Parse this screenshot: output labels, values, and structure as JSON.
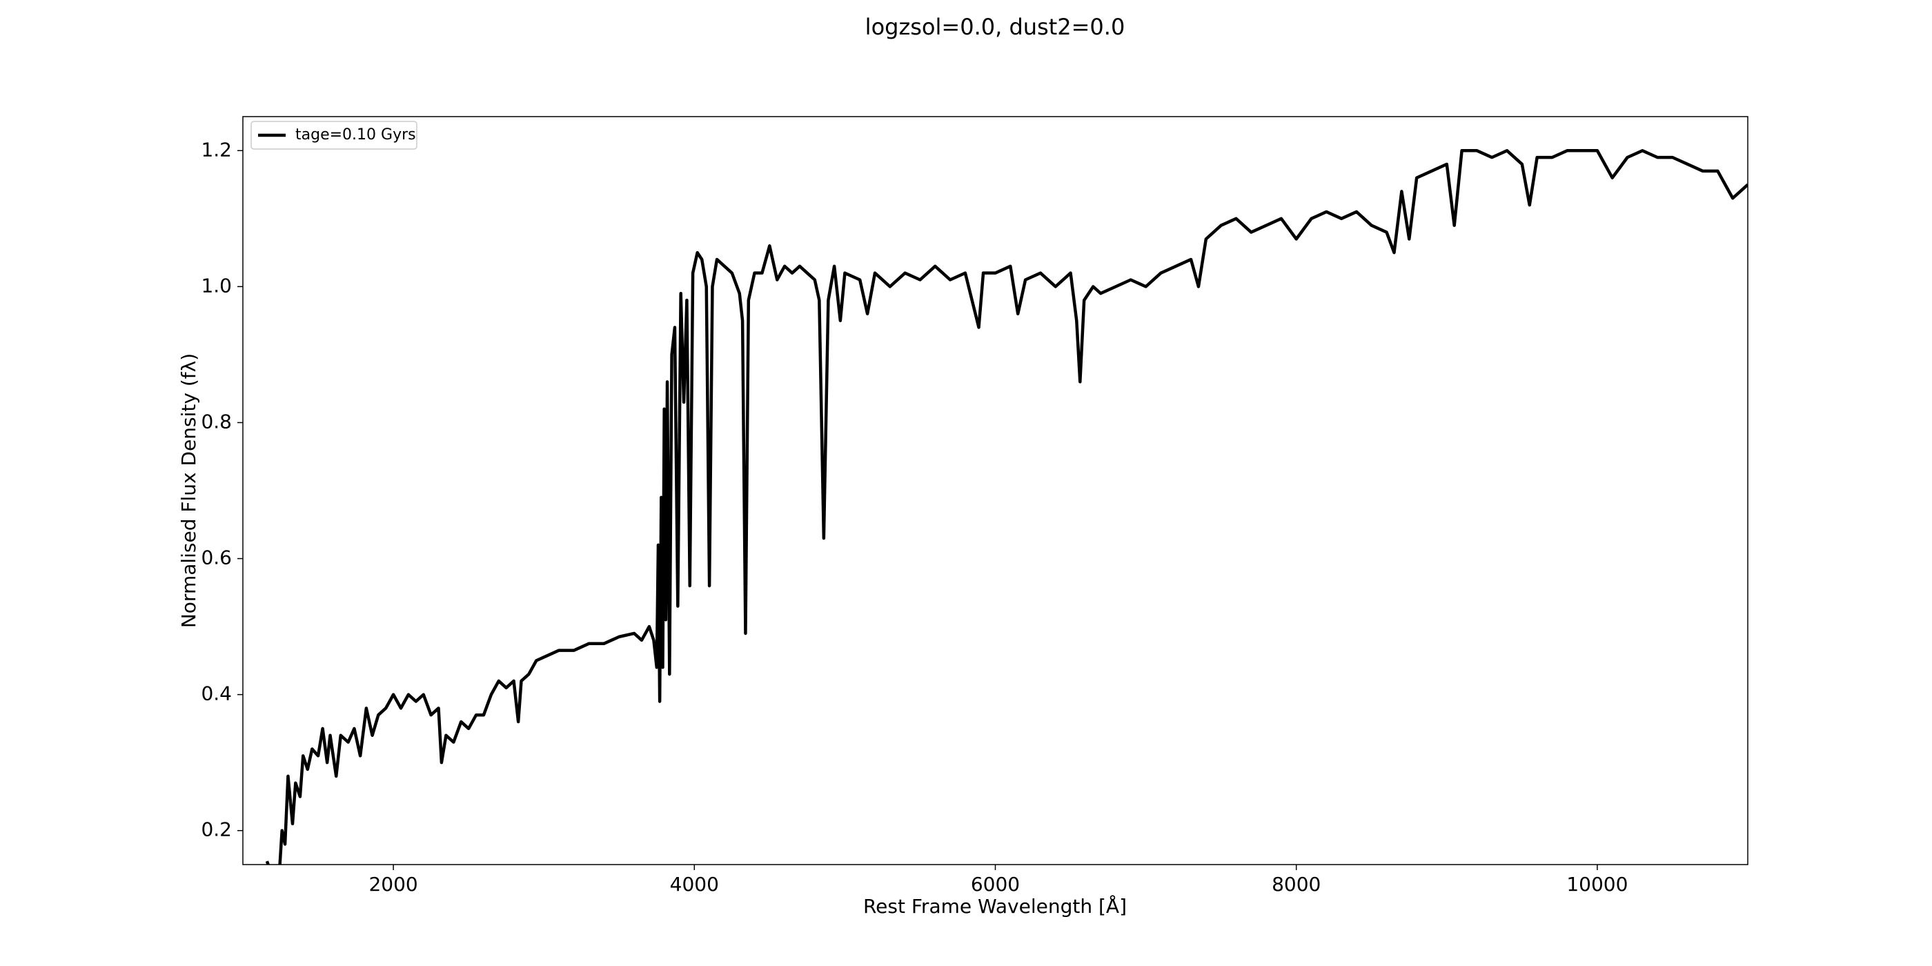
{
  "chart_data": {
    "type": "line",
    "title": "logzsol=0.0, dust2=0.0",
    "xlabel": "Rest Frame Wavelength [Å]",
    "ylabel": "Normalised Flux Density (fλ)",
    "xlim": [
      1000,
      11000
    ],
    "ylim": [
      0.15,
      1.25
    ],
    "xticks": [
      2000,
      4000,
      6000,
      8000,
      10000
    ],
    "yticks": [
      0.2,
      0.4,
      0.6,
      0.8,
      {
        "value": 1.0,
        "label": "1.0"
      },
      1.2
    ],
    "legend": "upper left",
    "x": [
      1160,
      1200,
      1240,
      1260,
      1280,
      1300,
      1330,
      1350,
      1380,
      1400,
      1430,
      1460,
      1500,
      1530,
      1560,
      1580,
      1620,
      1650,
      1700,
      1740,
      1780,
      1820,
      1860,
      1900,
      1950,
      2000,
      2050,
      2100,
      2150,
      2200,
      2250,
      2300,
      2320,
      2350,
      2400,
      2450,
      2500,
      2550,
      2600,
      2650,
      2700,
      2750,
      2800,
      2830,
      2850,
      2900,
      2950,
      3000,
      3100,
      3200,
      3300,
      3400,
      3500,
      3600,
      3650,
      3700,
      3730,
      3750,
      3760,
      3770,
      3780,
      3790,
      3800,
      3810,
      3820,
      3835,
      3850,
      3870,
      3890,
      3910,
      3930,
      3950,
      3970,
      3990,
      4020,
      4050,
      4080,
      4100,
      4120,
      4150,
      4200,
      4250,
      4300,
      4320,
      4340,
      4360,
      4400,
      4450,
      4500,
      4550,
      4600,
      4650,
      4700,
      4750,
      4800,
      4830,
      4860,
      4890,
      4930,
      4970,
      5000,
      5100,
      5150,
      5200,
      5300,
      5400,
      5500,
      5600,
      5700,
      5800,
      5890,
      5920,
      6000,
      6100,
      6150,
      6200,
      6300,
      6400,
      6500,
      6540,
      6563,
      6590,
      6650,
      6700,
      6800,
      6900,
      7000,
      7100,
      7200,
      7300,
      7350,
      7400,
      7500,
      7600,
      7700,
      7800,
      7900,
      8000,
      8100,
      8200,
      8300,
      8400,
      8500,
      8600,
      8650,
      8700,
      8750,
      8800,
      8900,
      9000,
      9050,
      9100,
      9200,
      9300,
      9400,
      9500,
      9550,
      9600,
      9700,
      9800,
      9900,
      10000,
      10100,
      10200,
      10300,
      10400,
      10500,
      10600,
      10700,
      10800,
      10900,
      11000
    ],
    "series": [
      {
        "name": "tage=0.10 Gyrs",
        "color": "#000000",
        "values": [
          0.155,
          0.13,
          0.13,
          0.2,
          0.18,
          0.28,
          0.21,
          0.27,
          0.25,
          0.31,
          0.29,
          0.32,
          0.31,
          0.35,
          0.3,
          0.34,
          0.28,
          0.34,
          0.33,
          0.35,
          0.31,
          0.38,
          0.34,
          0.37,
          0.38,
          0.4,
          0.38,
          0.4,
          0.39,
          0.4,
          0.37,
          0.38,
          0.3,
          0.34,
          0.33,
          0.36,
          0.35,
          0.37,
          0.37,
          0.4,
          0.42,
          0.41,
          0.42,
          0.36,
          0.42,
          0.43,
          0.45,
          0.455,
          0.465,
          0.465,
          0.475,
          0.475,
          0.485,
          0.49,
          0.48,
          0.5,
          0.48,
          0.44,
          0.62,
          0.39,
          0.69,
          0.44,
          0.82,
          0.51,
          0.86,
          0.43,
          0.9,
          0.94,
          0.53,
          0.99,
          0.83,
          0.98,
          0.56,
          1.02,
          1.05,
          1.04,
          1.0,
          0.56,
          1.0,
          1.04,
          1.03,
          1.02,
          0.99,
          0.95,
          0.49,
          0.98,
          1.02,
          1.02,
          1.06,
          1.01,
          1.03,
          1.02,
          1.03,
          1.02,
          1.01,
          0.98,
          0.63,
          0.98,
          1.03,
          0.95,
          1.02,
          1.01,
          0.96,
          1.02,
          1.0,
          1.02,
          1.01,
          1.03,
          1.01,
          1.02,
          0.94,
          1.02,
          1.02,
          1.03,
          0.96,
          1.01,
          1.02,
          1.0,
          1.02,
          0.95,
          0.86,
          0.98,
          1.0,
          0.99,
          1.0,
          1.01,
          1.0,
          1.02,
          1.03,
          1.04,
          1.0,
          1.07,
          1.09,
          1.1,
          1.08,
          1.09,
          1.1,
          1.07,
          1.1,
          1.11,
          1.1,
          1.11,
          1.09,
          1.08,
          1.05,
          1.14,
          1.07,
          1.16,
          1.17,
          1.18,
          1.09,
          1.2,
          1.2,
          1.19,
          1.2,
          1.18,
          1.12,
          1.19,
          1.19,
          1.2,
          1.2,
          1.2,
          1.16,
          1.19,
          1.2,
          1.19,
          1.19,
          1.18,
          1.17,
          1.17,
          1.13,
          1.15
        ]
      }
    ]
  }
}
